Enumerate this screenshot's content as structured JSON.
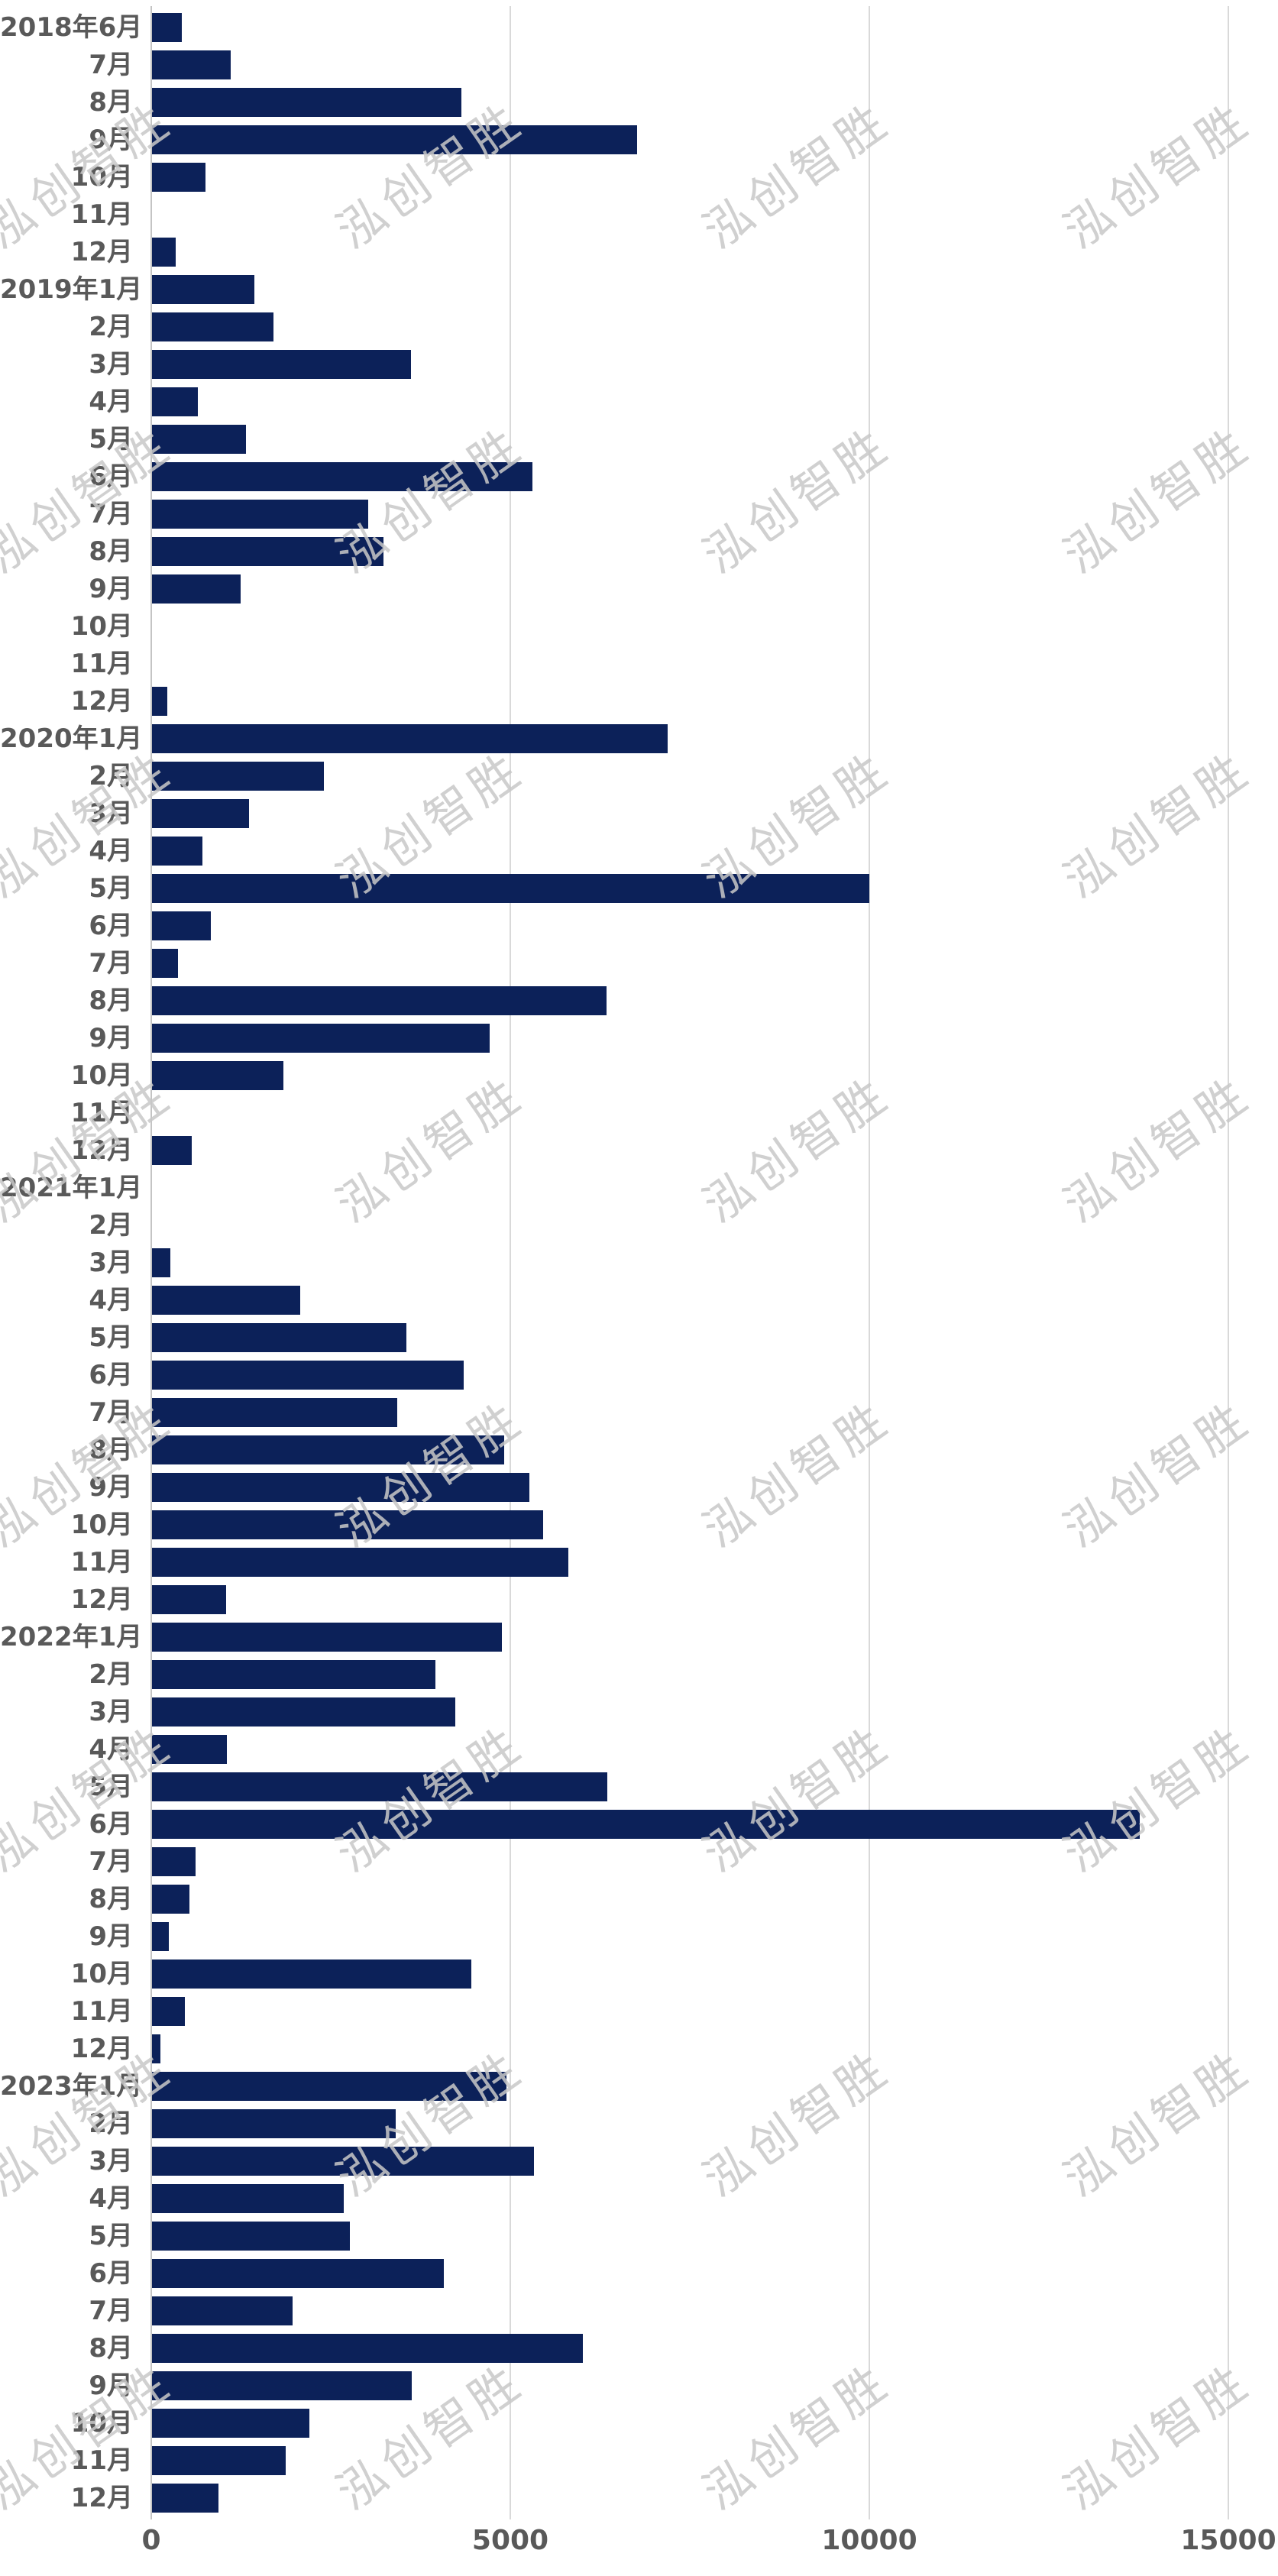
{
  "chart_data": {
    "type": "bar",
    "orientation": "horizontal",
    "title": "",
    "xlabel": "",
    "ylabel": "",
    "grid": true,
    "legend": null,
    "bar_color": "#0c2159",
    "x_ticks": [
      0,
      5000,
      10000,
      15000
    ],
    "xlim": [
      0,
      15690
    ],
    "categories": [
      "2018年6月",
      "7月",
      "8月",
      "9月",
      "10月",
      "11月",
      "12月",
      "2019年1月",
      "2月",
      "3月",
      "4月",
      "5月",
      "6月",
      "7月",
      "8月",
      "9月",
      "10月",
      "11月",
      "12月",
      "2020年1月",
      "2月",
      "3月",
      "4月",
      "5月",
      "6月",
      "7月",
      "8月",
      "9月",
      "10月",
      "11月",
      "12月",
      "2021年1月",
      "2月",
      "3月",
      "4月",
      "5月",
      "6月",
      "7月",
      "8月",
      "9月",
      "10月",
      "11月",
      "12月",
      "2022年1月",
      "2月",
      "3月",
      "4月",
      "5月",
      "6月",
      "7月",
      "8月",
      "9月",
      "10月",
      "11月",
      "12月",
      "2023年1月",
      "2月",
      "3月",
      "4月",
      "5月",
      "6月",
      "7月",
      "8月",
      "9月",
      "10月",
      "11月",
      "12月"
    ],
    "values": [
      420,
      1100,
      4310,
      6750,
      740,
      0,
      330,
      1430,
      1690,
      3610,
      640,
      1310,
      5300,
      3010,
      3220,
      1230,
      0,
      0,
      210,
      7180,
      2390,
      1350,
      700,
      9990,
      820,
      360,
      6330,
      4700,
      1830,
      0,
      550,
      0,
      0,
      260,
      2060,
      3540,
      4340,
      3410,
      4900,
      5260,
      5450,
      5800,
      1030,
      4870,
      3950,
      4220,
      1040,
      6340,
      13750,
      610,
      520,
      230,
      4450,
      460,
      120,
      4940,
      3390,
      5320,
      2670,
      2760,
      4060,
      1960,
      6000,
      3620,
      2190,
      1860,
      930
    ]
  },
  "watermark": {
    "text": "泓创智胜",
    "color": "#c8c8c8"
  },
  "colors": {
    "bar": "#0c2159",
    "category_label": "#595959",
    "tick_label": "#595959",
    "gridline": "#d9d9d9",
    "axis_line": "#c4c4c4",
    "background": "#ffffff"
  }
}
